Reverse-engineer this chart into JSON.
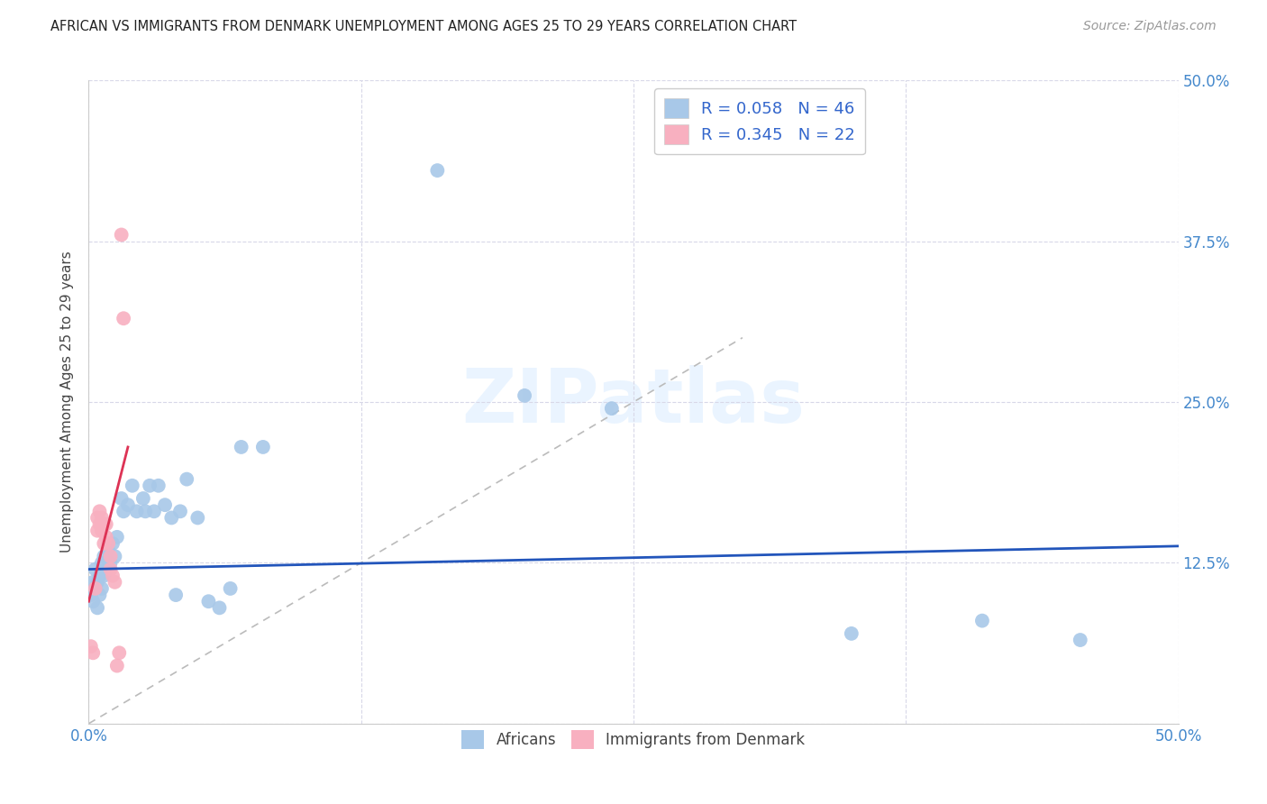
{
  "title": "AFRICAN VS IMMIGRANTS FROM DENMARK UNEMPLOYMENT AMONG AGES 25 TO 29 YEARS CORRELATION CHART",
  "source": "Source: ZipAtlas.com",
  "xlabel": "",
  "ylabel": "Unemployment Among Ages 25 to 29 years",
  "xlim": [
    0,
    0.5
  ],
  "ylim": [
    0,
    0.5
  ],
  "xticks": [
    0.0,
    0.125,
    0.25,
    0.375,
    0.5
  ],
  "yticks": [
    0.0,
    0.125,
    0.25,
    0.375,
    0.5
  ],
  "africans_R": 0.058,
  "africans_N": 46,
  "immigrants_R": 0.345,
  "immigrants_N": 22,
  "africans_color": "#a8c8e8",
  "immigrants_color": "#f8b0c0",
  "africans_line_color": "#2255bb",
  "immigrants_line_color": "#dd3355",
  "africans_x": [
    0.001,
    0.002,
    0.002,
    0.003,
    0.003,
    0.004,
    0.004,
    0.005,
    0.005,
    0.006,
    0.006,
    0.007,
    0.007,
    0.008,
    0.009,
    0.01,
    0.011,
    0.012,
    0.013,
    0.015,
    0.016,
    0.018,
    0.02,
    0.022,
    0.025,
    0.026,
    0.028,
    0.03,
    0.032,
    0.035,
    0.038,
    0.04,
    0.042,
    0.045,
    0.05,
    0.055,
    0.06,
    0.065,
    0.07,
    0.08,
    0.16,
    0.2,
    0.24,
    0.35,
    0.41,
    0.455
  ],
  "africans_y": [
    0.1,
    0.11,
    0.095,
    0.105,
    0.12,
    0.09,
    0.11,
    0.1,
    0.115,
    0.105,
    0.125,
    0.115,
    0.13,
    0.12,
    0.135,
    0.125,
    0.14,
    0.13,
    0.145,
    0.175,
    0.165,
    0.17,
    0.185,
    0.165,
    0.175,
    0.165,
    0.185,
    0.165,
    0.185,
    0.17,
    0.16,
    0.1,
    0.165,
    0.19,
    0.16,
    0.095,
    0.09,
    0.105,
    0.215,
    0.215,
    0.43,
    0.255,
    0.245,
    0.07,
    0.08,
    0.065
  ],
  "immigrants_x": [
    0.001,
    0.002,
    0.003,
    0.004,
    0.004,
    0.005,
    0.005,
    0.006,
    0.006,
    0.007,
    0.007,
    0.008,
    0.008,
    0.009,
    0.01,
    0.01,
    0.011,
    0.012,
    0.013,
    0.014,
    0.015,
    0.016
  ],
  "immigrants_y": [
    0.06,
    0.055,
    0.105,
    0.15,
    0.16,
    0.165,
    0.155,
    0.16,
    0.15,
    0.155,
    0.14,
    0.155,
    0.145,
    0.14,
    0.13,
    0.12,
    0.115,
    0.11,
    0.045,
    0.055,
    0.38,
    0.315
  ],
  "background_color": "#ffffff",
  "grid_color": "#d8d8e8",
  "watermark_text": "ZIPatlas",
  "legend_R_N_color": "#3366cc",
  "tick_color": "#4488cc"
}
